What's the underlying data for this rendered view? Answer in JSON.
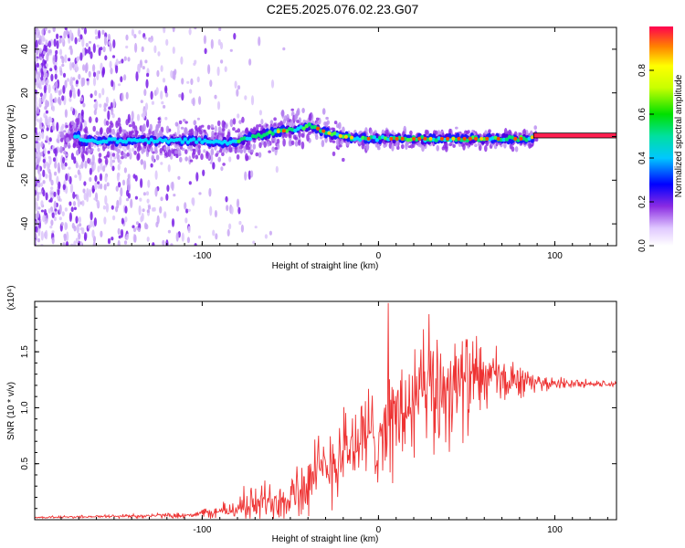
{
  "title": "C2E5.2025.076.02.23.G07",
  "chart_data": [
    {
      "type": "heatmap",
      "xlabel": "Height of straight line (km)",
      "ylabel": "Frequency (Hz)",
      "xlim": [
        -195,
        135
      ],
      "ylim": [
        -50,
        50
      ],
      "xticks": [
        -100,
        0,
        100
      ],
      "yticks": [
        -40,
        -20,
        0,
        20,
        40
      ],
      "colorbar": {
        "label": "Normalized spectral amplitude",
        "ticks": [
          0.0,
          0.2,
          0.4,
          0.6,
          0.8
        ],
        "range": [
          0,
          1
        ]
      },
      "ridge": [
        {
          "x": -170,
          "f": -2
        },
        {
          "x": -150,
          "f": -2
        },
        {
          "x": -120,
          "f": -2
        },
        {
          "x": -100,
          "f": -2
        },
        {
          "x": -85,
          "f": -3
        },
        {
          "x": -70,
          "f": 0
        },
        {
          "x": -60,
          "f": 2
        },
        {
          "x": -50,
          "f": 3
        },
        {
          "x": -38,
          "f": 5
        },
        {
          "x": -30,
          "f": 2
        },
        {
          "x": -20,
          "f": 0
        },
        {
          "x": -10,
          "f": -1
        },
        {
          "x": 0,
          "f": -1
        },
        {
          "x": 20,
          "f": -1
        },
        {
          "x": 50,
          "f": -1
        },
        {
          "x": 85,
          "f": -1
        },
        {
          "x": 90,
          "f": 0.5
        },
        {
          "x": 135,
          "f": 0.5
        }
      ]
    },
    {
      "type": "line",
      "xlabel": "Height of straight line (km)",
      "ylabel": "SNR (10 * v/v)",
      "y_multiplier": "(x10^4)",
      "xlim": [
        -195,
        135
      ],
      "ylim": [
        0,
        1.95
      ],
      "xticks": [
        -100,
        0,
        100
      ],
      "yticks": [
        0.5,
        1.0,
        1.5
      ],
      "series": [
        {
          "color": "#ee3333",
          "envelope": [
            {
              "x": -195,
              "base": 0.02,
              "amp": 0.01
            },
            {
              "x": -110,
              "base": 0.04,
              "amp": 0.03
            },
            {
              "x": -90,
              "base": 0.07,
              "amp": 0.08
            },
            {
              "x": -70,
              "base": 0.14,
              "amp": 0.2
            },
            {
              "x": -55,
              "base": 0.2,
              "amp": 0.3
            },
            {
              "x": -40,
              "base": 0.3,
              "amp": 0.4
            },
            {
              "x": -25,
              "base": 0.55,
              "amp": 0.5
            },
            {
              "x": -10,
              "base": 0.7,
              "amp": 0.55
            },
            {
              "x": 0,
              "base": 0.8,
              "amp": 0.55
            },
            {
              "x": 15,
              "base": 0.95,
              "amp": 0.7
            },
            {
              "x": 25,
              "base": 1.1,
              "amp": 0.8
            },
            {
              "x": 40,
              "base": 1.2,
              "amp": 0.65
            },
            {
              "x": 60,
              "base": 1.25,
              "amp": 0.45
            },
            {
              "x": 75,
              "base": 1.25,
              "amp": 0.25
            },
            {
              "x": 90,
              "base": 1.22,
              "amp": 0.08
            },
            {
              "x": 135,
              "base": 1.21,
              "amp": 0.03
            }
          ]
        }
      ]
    }
  ]
}
